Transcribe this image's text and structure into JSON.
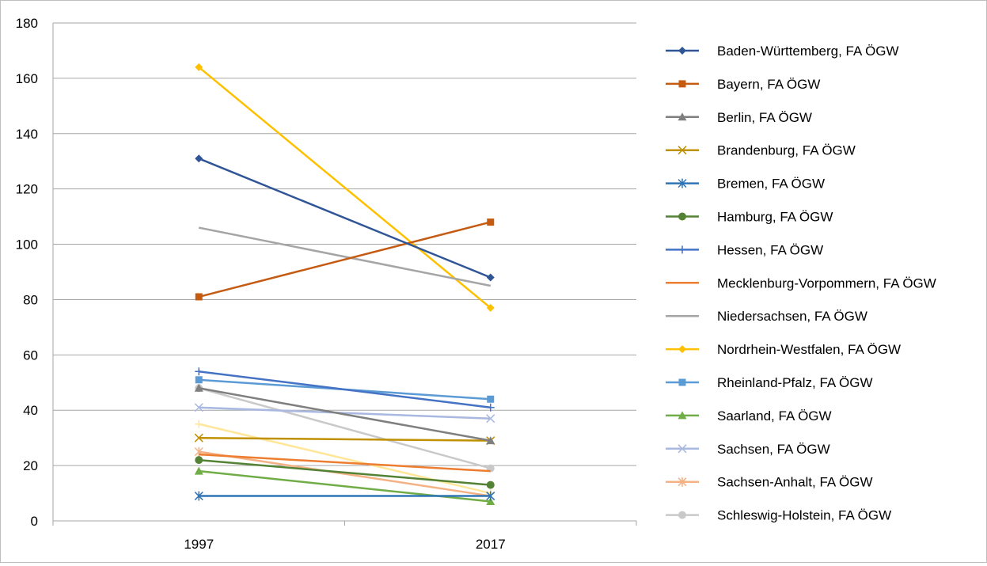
{
  "chart_data": {
    "type": "line",
    "categories": [
      "1997",
      "2017"
    ],
    "ylim": [
      0,
      180
    ],
    "yticks": [
      0,
      20,
      40,
      60,
      80,
      100,
      120,
      140,
      160,
      180
    ],
    "grid": true,
    "legend_position": "right",
    "series": [
      {
        "name": "Baden-Württemberg, FA ÖGW",
        "values": [
          131,
          88
        ],
        "color": "#2f5597",
        "marker": "diamond"
      },
      {
        "name": "Bayern, FA ÖGW",
        "values": [
          81,
          108
        ],
        "color": "#c55a11",
        "marker": "square"
      },
      {
        "name": "Berlin, FA ÖGW",
        "values": [
          48,
          29
        ],
        "color": "#7f7f7f",
        "marker": "triangle"
      },
      {
        "name": "Brandenburg, FA ÖGW",
        "values": [
          30,
          29
        ],
        "color": "#bf9000",
        "marker": "x"
      },
      {
        "name": "Bremen, FA ÖGW",
        "values": [
          9,
          9
        ],
        "color": "#2e75b6",
        "marker": "star"
      },
      {
        "name": "Hamburg, FA ÖGW",
        "values": [
          22,
          13
        ],
        "color": "#548235",
        "marker": "circle"
      },
      {
        "name": "Hessen, FA ÖGW",
        "values": [
          54,
          41
        ],
        "color": "#4472c4",
        "marker": "plus"
      },
      {
        "name": "Mecklenburg-Vorpommern, FA ÖGW",
        "values": [
          24,
          18
        ],
        "color": "#ed7d31",
        "marker": "none"
      },
      {
        "name": "Niedersachsen, FA ÖGW",
        "values": [
          106,
          85
        ],
        "color": "#a5a5a5",
        "marker": "none"
      },
      {
        "name": "Nordrhein-Westfalen, FA ÖGW",
        "values": [
          164,
          77
        ],
        "color": "#ffc000",
        "marker": "diamond"
      },
      {
        "name": "Rheinland-Pfalz, FA ÖGW",
        "values": [
          51,
          44
        ],
        "color": "#5b9bd5",
        "marker": "square"
      },
      {
        "name": "Saarland, FA ÖGW",
        "values": [
          18,
          7
        ],
        "color": "#70ad47",
        "marker": "triangle"
      },
      {
        "name": "Sachsen, FA ÖGW",
        "values": [
          41,
          37
        ],
        "color": "#a9b8e0",
        "marker": "x"
      },
      {
        "name": "Sachsen-Anhalt, FA ÖGW",
        "values": [
          25,
          9
        ],
        "color": "#f4b183",
        "marker": "star"
      },
      {
        "name": "Schleswig-Holstein, FA ÖGW",
        "values": [
          48,
          19
        ],
        "color": "#c9c9c9",
        "marker": "circle"
      },
      {
        "name": "",
        "values": [
          35,
          10
        ],
        "color": "#ffe699",
        "marker": "plus"
      }
    ]
  }
}
